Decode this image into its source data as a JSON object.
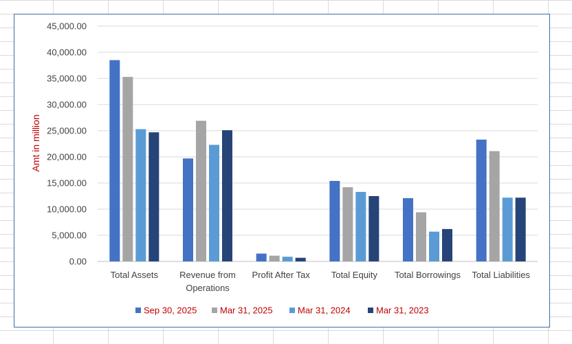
{
  "chart_data": {
    "type": "bar",
    "title": "",
    "xlabel": "",
    "ylabel": "Amt in million",
    "ylim": [
      0,
      45000
    ],
    "yticks": [
      0,
      5000,
      10000,
      15000,
      20000,
      25000,
      30000,
      35000,
      40000,
      45000
    ],
    "ytick_labels": [
      "0.00",
      "5,000.00",
      "10,000.00",
      "15,000.00",
      "20,000.00",
      "25,000.00",
      "30,000.00",
      "35,000.00",
      "40,000.00",
      "45,000.00"
    ],
    "categories": [
      "Total Assets",
      "Revenue from Operations",
      "Profit After Tax",
      "Total Equity",
      "Total Borrowings",
      "Total Liabilities"
    ],
    "category_lines": [
      [
        "Total Assets"
      ],
      [
        "Revenue from",
        "Operations"
      ],
      [
        "Profit After Tax"
      ],
      [
        "Total Equity"
      ],
      [
        "Total Borrowings"
      ],
      [
        "Total Liabilities"
      ]
    ],
    "grid": true,
    "legend_position": "bottom",
    "series": [
      {
        "name": "Sep 30, 2025",
        "color": "#4472c4",
        "values": [
          38500,
          19700,
          1500,
          15400,
          12100,
          23300
        ]
      },
      {
        "name": "Mar 31, 2025",
        "color": "#a5a5a5",
        "values": [
          35300,
          26900,
          1100,
          14200,
          9400,
          21100
        ]
      },
      {
        "name": "Mar 31, 2024",
        "color": "#5b9bd5",
        "values": [
          25300,
          22300,
          900,
          13300,
          5700,
          12200
        ]
      },
      {
        "name": "Mar 31, 2023",
        "color": "#264478",
        "values": [
          24700,
          25100,
          700,
          12500,
          6200,
          12200
        ]
      }
    ]
  }
}
